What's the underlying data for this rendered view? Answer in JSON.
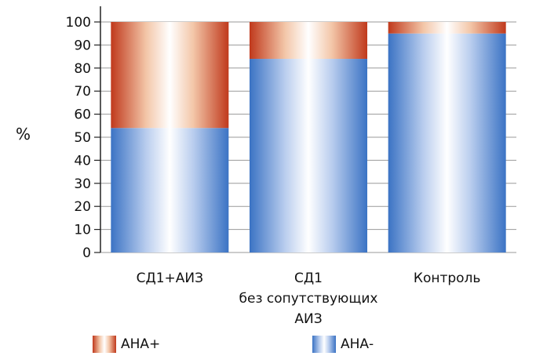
{
  "chart_data": {
    "type": "bar",
    "stacked": true,
    "categories": [
      [
        "СД1+АИЗ"
      ],
      [
        "СД1",
        "без сопутствующих",
        "АИЗ"
      ],
      [
        "Контроль"
      ]
    ],
    "series": [
      {
        "name": "АНА-",
        "values": [
          54,
          84,
          95
        ],
        "color": "#3b73c4"
      },
      {
        "name": "АНА+",
        "values": [
          46,
          16,
          5
        ],
        "color": "#c0391c"
      }
    ],
    "ylabel": "%",
    "ylim": [
      0,
      100
    ],
    "yticks": [
      "0",
      "10",
      "20",
      "30",
      "40",
      "50",
      "60",
      "70",
      "80",
      "90",
      "100"
    ],
    "grid": true,
    "legend_position": "bottom"
  }
}
